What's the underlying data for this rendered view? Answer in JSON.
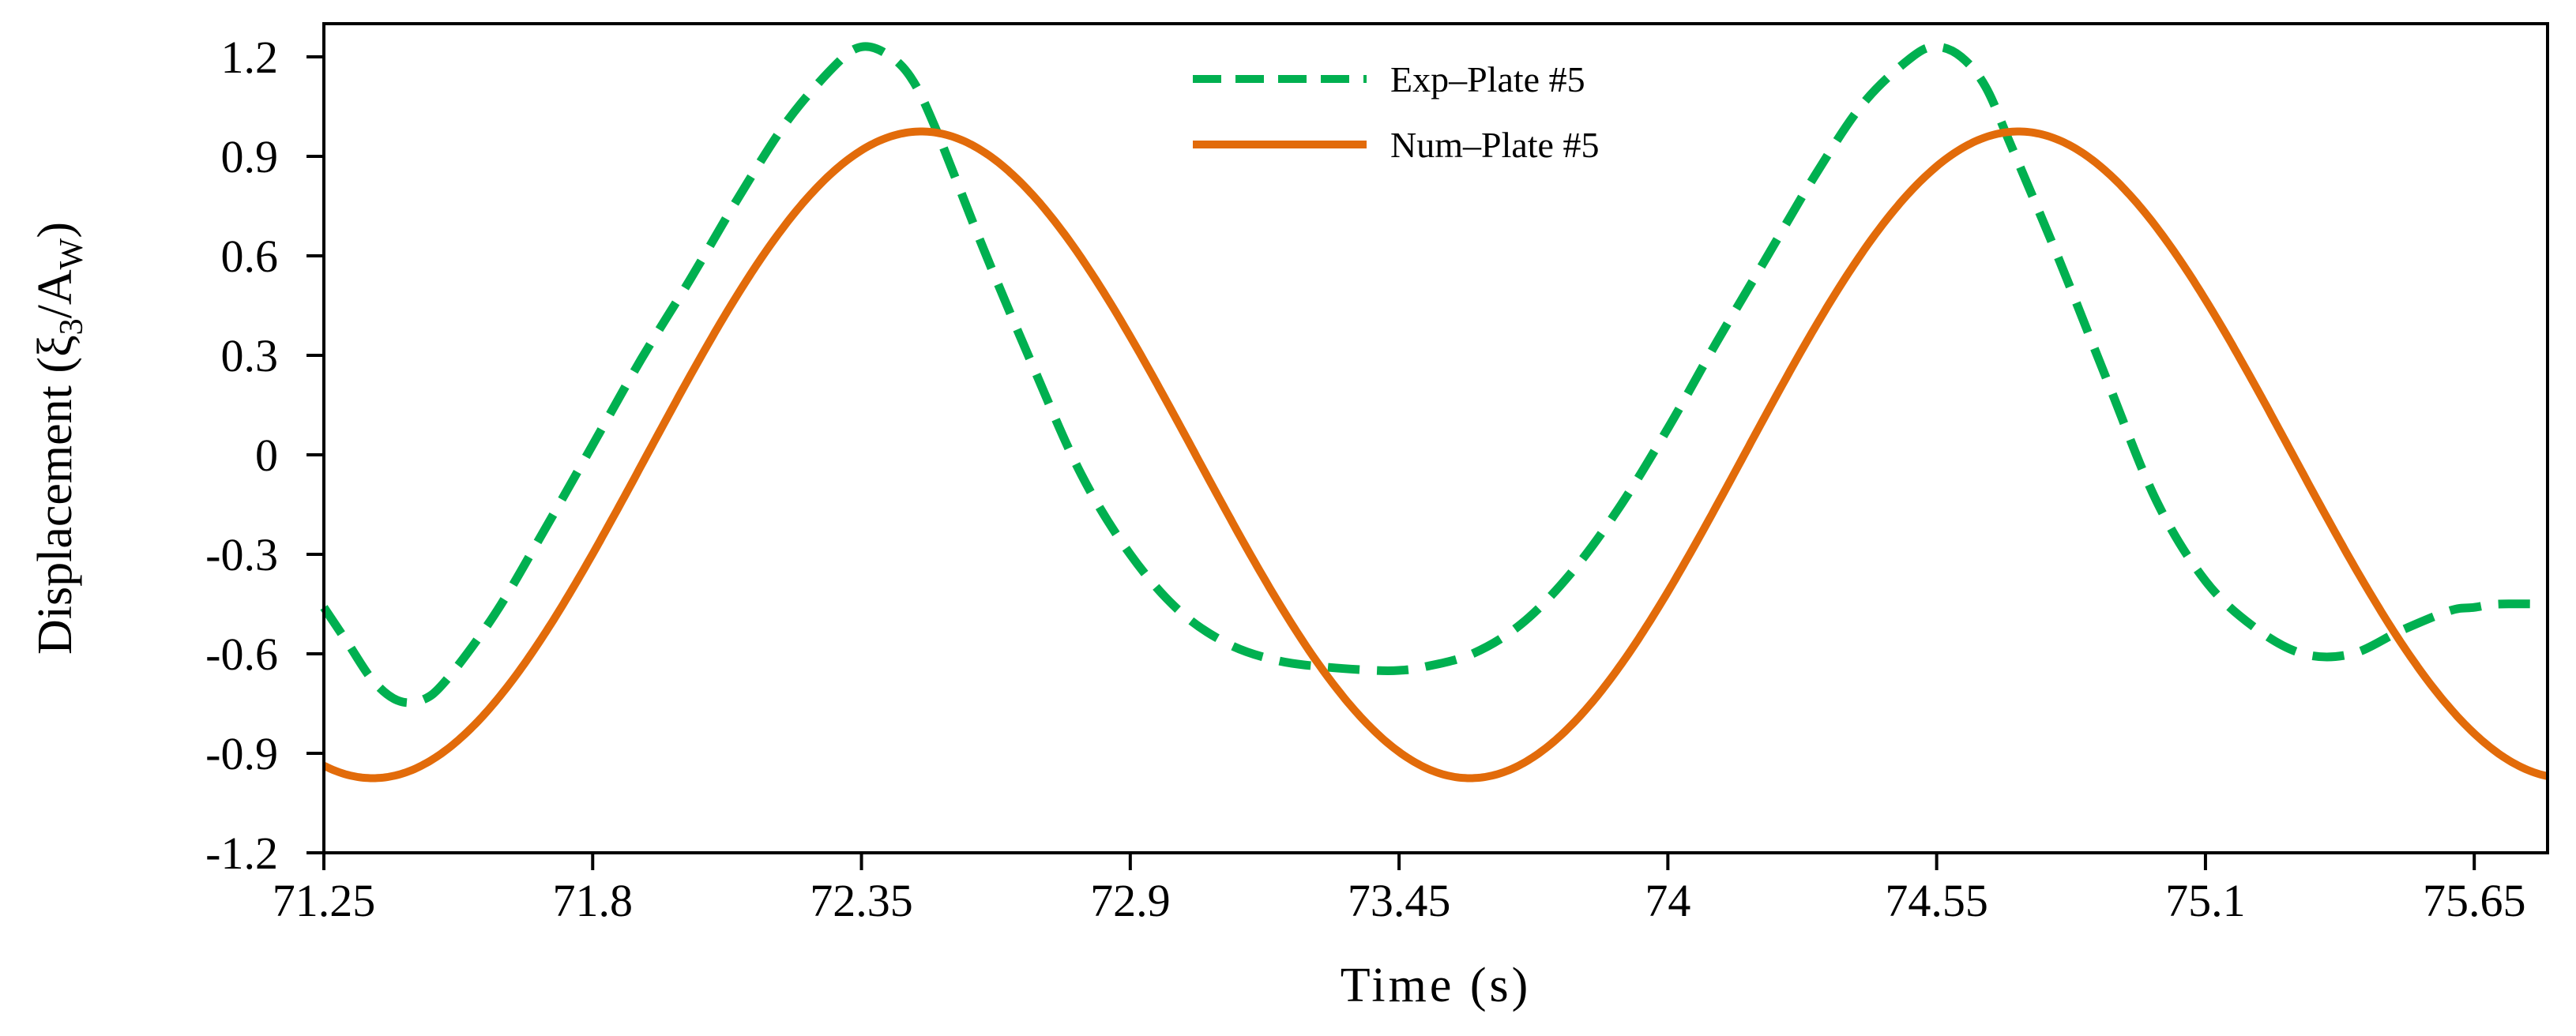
{
  "chart_data": {
    "type": "line",
    "title": "",
    "xlabel": "Time (s)",
    "ylabel": "Displacement (ξ3/AW)",
    "ylabel_parts": {
      "prefix": "Displacement (",
      "xi": "ξ",
      "xi_sub": "3",
      "slash": "/A",
      "a_sub": "W",
      "suffix": ")"
    },
    "xlim": [
      71.25,
      75.8
    ],
    "ylim": [
      -1.2,
      1.3
    ],
    "x_ticks": [
      71.25,
      71.8,
      72.35,
      72.9,
      73.45,
      74,
      74.55,
      75.1,
      75.65
    ],
    "x_tick_labels": [
      "71.25",
      "71.8",
      "72.35",
      "72.9",
      "73.45",
      "74",
      "74.55",
      "75.1",
      "75.65"
    ],
    "y_ticks": [
      1.2,
      0.9,
      0.6,
      0.3,
      0,
      -0.3,
      -0.6,
      -0.9,
      -1.2
    ],
    "y_tick_labels": [
      "1.2",
      "0.9",
      "0.6",
      "0.3",
      "0",
      "-0.3",
      "-0.6",
      "-0.9",
      "-1.2"
    ],
    "grid": false,
    "legend_position": "top-center",
    "series": [
      {
        "name": "Exp–Plate #5",
        "color": "#00b050",
        "style": "dashed",
        "x": [
          71.25,
          71.3,
          71.35,
          71.4,
          71.45,
          71.5,
          71.6,
          71.7,
          71.8,
          71.9,
          72.0,
          72.1,
          72.2,
          72.3,
          72.35,
          72.4,
          72.45,
          72.5,
          72.6,
          72.7,
          72.8,
          72.9,
          73.0,
          73.1,
          73.2,
          73.3,
          73.4,
          73.45,
          73.5,
          73.6,
          73.7,
          73.8,
          73.9,
          74.0,
          74.1,
          74.2,
          74.3,
          74.4,
          74.5,
          74.55,
          74.6,
          74.65,
          74.7,
          74.8,
          74.9,
          75.0,
          75.1,
          75.2,
          75.3,
          75.4,
          75.5,
          75.6,
          75.65,
          75.7,
          75.8
        ],
        "y": [
          -0.46,
          -0.57,
          -0.68,
          -0.74,
          -0.74,
          -0.68,
          -0.48,
          -0.23,
          0.03,
          0.29,
          0.53,
          0.78,
          1.01,
          1.18,
          1.23,
          1.21,
          1.14,
          0.99,
          0.62,
          0.27,
          -0.06,
          -0.3,
          -0.47,
          -0.57,
          -0.62,
          -0.64,
          -0.65,
          -0.65,
          -0.64,
          -0.6,
          -0.51,
          -0.36,
          -0.16,
          0.08,
          0.34,
          0.59,
          0.84,
          1.06,
          1.2,
          1.23,
          1.2,
          1.11,
          0.94,
          0.59,
          0.22,
          -0.14,
          -0.38,
          -0.52,
          -0.6,
          -0.6,
          -0.53,
          -0.47,
          -0.46,
          -0.45,
          -0.45
        ]
      },
      {
        "name": "Num–Plate #5",
        "color": "#e26b0a",
        "style": "solid",
        "amplitude": 0.975,
        "period": 2.245,
        "trough_x": 71.35,
        "x": [
          71.25,
          71.35,
          71.5,
          71.75,
          72.0,
          72.25,
          72.45,
          72.7,
          72.95,
          73.2,
          73.45,
          73.6,
          73.8,
          74.0,
          74.2,
          74.4,
          74.6,
          74.85,
          75.1,
          75.35,
          75.6,
          75.8
        ],
        "y": [
          -0.95,
          -0.975,
          -0.91,
          -0.55,
          0.05,
          0.63,
          0.975,
          0.8,
          0.26,
          -0.38,
          -0.88,
          -0.97,
          -0.82,
          -0.34,
          0.25,
          0.75,
          0.975,
          0.74,
          0.16,
          -0.45,
          -0.9,
          -0.96
        ]
      }
    ]
  }
}
